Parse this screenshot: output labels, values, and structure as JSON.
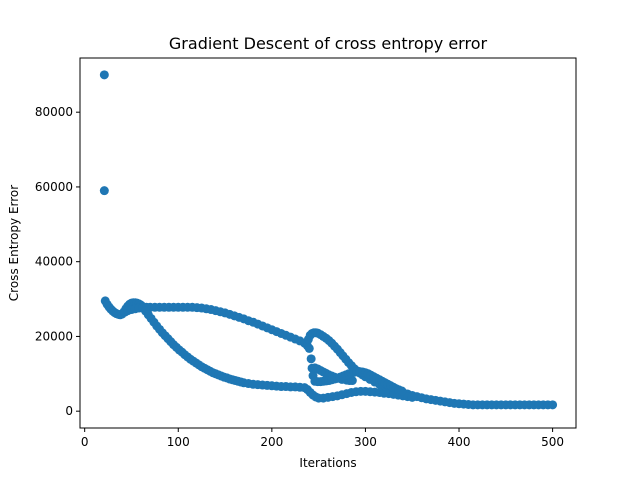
{
  "chart_data": {
    "type": "scatter",
    "title": "Gradient Descent of cross entropy error",
    "xlabel": "Iterations",
    "ylabel": "Cross Entropy Error",
    "xlim": [
      -5,
      525
    ],
    "ylim": [
      -4500,
      94500
    ],
    "xticks": [
      0,
      100,
      200,
      300,
      400,
      500
    ],
    "yticks": [
      0,
      20000,
      40000,
      60000,
      80000
    ],
    "xtick_labels": [
      "0",
      "100",
      "200",
      "300",
      "400",
      "500"
    ],
    "ytick_labels": [
      "0",
      "20000",
      "40000",
      "60000",
      "80000"
    ],
    "grid": false,
    "color": "#1f77b4",
    "series": [
      {
        "points": [
          [
            21,
            90000
          ],
          [
            21,
            59000
          ],
          [
            22,
            29500
          ],
          [
            24,
            28600
          ],
          [
            26,
            27900
          ],
          [
            28,
            27300
          ],
          [
            30,
            26800
          ],
          [
            32,
            26400
          ],
          [
            34,
            26100
          ],
          [
            36,
            25900
          ],
          [
            38,
            25800
          ],
          [
            40,
            26000
          ],
          [
            42,
            26600
          ],
          [
            44,
            27400
          ],
          [
            46,
            28100
          ],
          [
            48,
            28600
          ],
          [
            50,
            28900
          ],
          [
            52,
            29000
          ],
          [
            54,
            29000
          ],
          [
            56,
            28900
          ],
          [
            58,
            28700
          ],
          [
            60,
            28400
          ],
          [
            62,
            28000
          ],
          [
            64,
            27600
          ],
          [
            43,
            26500
          ],
          [
            46,
            26900
          ],
          [
            50,
            27200
          ],
          [
            54,
            27400
          ],
          [
            58,
            27600
          ],
          [
            62,
            27700
          ],
          [
            66,
            27800
          ],
          [
            70,
            27800
          ],
          [
            75,
            27800
          ],
          [
            80,
            27800
          ],
          [
            85,
            27800
          ],
          [
            90,
            27800
          ],
          [
            95,
            27800
          ],
          [
            100,
            27800
          ],
          [
            105,
            27800
          ],
          [
            110,
            27800
          ],
          [
            115,
            27800
          ],
          [
            120,
            27700
          ],
          [
            125,
            27600
          ],
          [
            130,
            27400
          ],
          [
            135,
            27200
          ],
          [
            140,
            26900
          ],
          [
            145,
            26600
          ],
          [
            150,
            26300
          ],
          [
            155,
            25900
          ],
          [
            160,
            25500
          ],
          [
            165,
            25100
          ],
          [
            170,
            24700
          ],
          [
            175,
            24200
          ],
          [
            180,
            23800
          ],
          [
            185,
            23300
          ],
          [
            190,
            22800
          ],
          [
            195,
            22300
          ],
          [
            200,
            21800
          ],
          [
            205,
            21300
          ],
          [
            210,
            20800
          ],
          [
            215,
            20300
          ],
          [
            220,
            19800
          ],
          [
            225,
            19300
          ],
          [
            230,
            18800
          ],
          [
            235,
            18200
          ],
          [
            238,
            17500
          ],
          [
            240,
            16800
          ],
          [
            242,
            14000
          ],
          [
            243,
            11500
          ],
          [
            244,
            9500
          ],
          [
            239,
            19200
          ],
          [
            241,
            20300
          ],
          [
            243,
            20800
          ],
          [
            245,
            21000
          ],
          [
            247,
            21000
          ],
          [
            249,
            20900
          ],
          [
            252,
            20500
          ],
          [
            255,
            20000
          ],
          [
            258,
            19500
          ],
          [
            261,
            18900
          ],
          [
            264,
            18200
          ],
          [
            267,
            17400
          ],
          [
            270,
            16600
          ],
          [
            273,
            15700
          ],
          [
            276,
            14800
          ],
          [
            279,
            13900
          ],
          [
            282,
            13000
          ],
          [
            285,
            12200
          ],
          [
            288,
            11400
          ],
          [
            291,
            10800
          ],
          [
            294,
            10200
          ],
          [
            297,
            9700
          ],
          [
            300,
            9200
          ],
          [
            305,
            8500
          ],
          [
            310,
            7800
          ],
          [
            315,
            7200
          ],
          [
            320,
            6700
          ],
          [
            325,
            6200
          ],
          [
            330,
            5800
          ],
          [
            335,
            5400
          ],
          [
            340,
            5000
          ],
          [
            345,
            4600
          ],
          [
            350,
            4200
          ],
          [
            355,
            3900
          ],
          [
            360,
            3600
          ],
          [
            365,
            3300
          ],
          [
            370,
            3100
          ],
          [
            375,
            2900
          ],
          [
            380,
            2700
          ],
          [
            385,
            2500
          ],
          [
            390,
            2300
          ],
          [
            395,
            2100
          ],
          [
            400,
            2000
          ],
          [
            65,
            26800
          ],
          [
            68,
            25800
          ],
          [
            71,
            24800
          ],
          [
            74,
            23800
          ],
          [
            77,
            22800
          ],
          [
            80,
            21900
          ],
          [
            83,
            21000
          ],
          [
            86,
            20200
          ],
          [
            89,
            19400
          ],
          [
            92,
            18600
          ],
          [
            95,
            17800
          ],
          [
            98,
            17100
          ],
          [
            101,
            16400
          ],
          [
            104,
            15800
          ],
          [
            107,
            15100
          ],
          [
            110,
            14500
          ],
          [
            113,
            13900
          ],
          [
            116,
            13400
          ],
          [
            119,
            12900
          ],
          [
            122,
            12400
          ],
          [
            125,
            11900
          ],
          [
            128,
            11500
          ],
          [
            131,
            11100
          ],
          [
            134,
            10700
          ],
          [
            137,
            10300
          ],
          [
            140,
            10000
          ],
          [
            143,
            9700
          ],
          [
            146,
            9400
          ],
          [
            149,
            9100
          ],
          [
            152,
            8900
          ],
          [
            155,
            8600
          ],
          [
            158,
            8400
          ],
          [
            161,
            8200
          ],
          [
            164,
            8000
          ],
          [
            167,
            7800
          ],
          [
            170,
            7600
          ],
          [
            175,
            7400
          ],
          [
            180,
            7200
          ],
          [
            185,
            7100
          ],
          [
            190,
            7000
          ],
          [
            195,
            6900
          ],
          [
            200,
            6800
          ],
          [
            205,
            6700
          ],
          [
            210,
            6600
          ],
          [
            215,
            6600
          ],
          [
            220,
            6500
          ],
          [
            225,
            6500
          ],
          [
            230,
            6400
          ],
          [
            235,
            6300
          ],
          [
            238,
            5800
          ],
          [
            241,
            5000
          ],
          [
            244,
            4300
          ],
          [
            247,
            3800
          ],
          [
            250,
            3500
          ],
          [
            255,
            3500
          ],
          [
            260,
            3700
          ],
          [
            265,
            3900
          ],
          [
            270,
            4100
          ],
          [
            275,
            4400
          ],
          [
            280,
            4700
          ],
          [
            285,
            5000
          ],
          [
            290,
            5200
          ],
          [
            295,
            5300
          ],
          [
            300,
            5300
          ],
          [
            305,
            5200
          ],
          [
            310,
            5100
          ],
          [
            315,
            5000
          ],
          [
            320,
            4800
          ],
          [
            325,
            4700
          ],
          [
            330,
            4500
          ],
          [
            335,
            4300
          ],
          [
            340,
            4100
          ],
          [
            345,
            3900
          ],
          [
            350,
            3700
          ],
          [
            246,
            11600
          ],
          [
            249,
            11300
          ],
          [
            252,
            10900
          ],
          [
            255,
            10500
          ],
          [
            258,
            10100
          ],
          [
            261,
            9700
          ],
          [
            264,
            9400
          ],
          [
            267,
            9100
          ],
          [
            270,
            8800
          ],
          [
            275,
            8500
          ],
          [
            280,
            8300
          ],
          [
            283,
            8200
          ],
          [
            286,
            8200
          ],
          [
            246,
            8000
          ],
          [
            249,
            7900
          ],
          [
            252,
            7900
          ],
          [
            255,
            8000
          ],
          [
            258,
            8100
          ],
          [
            261,
            8200
          ],
          [
            264,
            8400
          ],
          [
            267,
            8600
          ],
          [
            270,
            8800
          ],
          [
            273,
            9100
          ],
          [
            276,
            9400
          ],
          [
            279,
            9700
          ],
          [
            282,
            10000
          ],
          [
            285,
            10200
          ],
          [
            288,
            10400
          ],
          [
            291,
            10600
          ],
          [
            294,
            10600
          ],
          [
            297,
            10500
          ],
          [
            300,
            10300
          ],
          [
            303,
            10000
          ],
          [
            306,
            9600
          ],
          [
            309,
            9200
          ],
          [
            312,
            8800
          ],
          [
            315,
            8400
          ],
          [
            318,
            8000
          ],
          [
            321,
            7600
          ],
          [
            324,
            7200
          ],
          [
            327,
            6800
          ],
          [
            330,
            6400
          ],
          [
            333,
            6000
          ],
          [
            336,
            5700
          ],
          [
            339,
            5400
          ],
          [
            405,
            1900
          ],
          [
            410,
            1800
          ],
          [
            415,
            1700
          ],
          [
            420,
            1700
          ],
          [
            425,
            1700
          ],
          [
            430,
            1700
          ],
          [
            435,
            1700
          ],
          [
            440,
            1700
          ],
          [
            445,
            1700
          ],
          [
            450,
            1700
          ],
          [
            455,
            1700
          ],
          [
            460,
            1700
          ],
          [
            465,
            1700
          ],
          [
            470,
            1700
          ],
          [
            475,
            1700
          ],
          [
            480,
            1700
          ],
          [
            485,
            1700
          ],
          [
            490,
            1700
          ],
          [
            495,
            1700
          ],
          [
            500,
            1700
          ]
        ]
      }
    ]
  }
}
